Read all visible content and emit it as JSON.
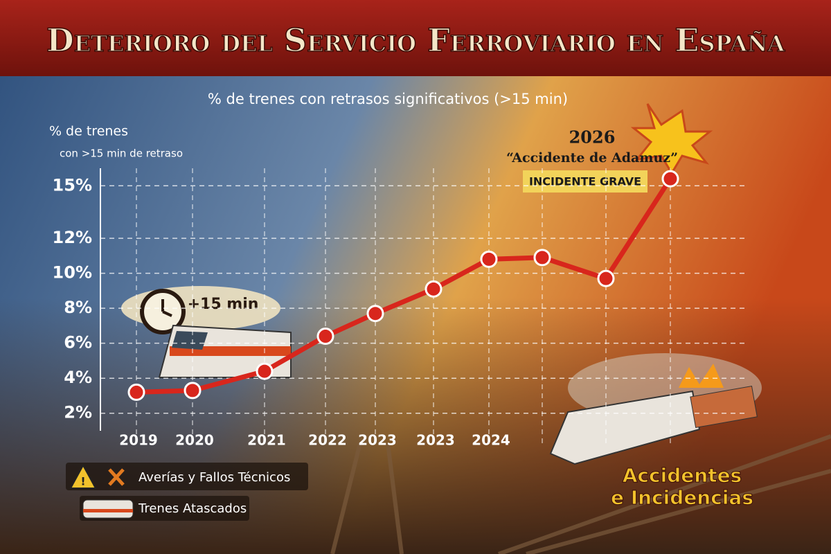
{
  "chart_data": {
    "type": "line",
    "title": "Deterioro del Servicio Ferroviario en España",
    "subtitle": "% de trenes con retrasos significativos (>15 min)",
    "y_label": [
      "% de trenes",
      "con >15 min de retraso"
    ],
    "categories": [
      "2019",
      "2020",
      "2021",
      "2022",
      "2023",
      "2023",
      "2024",
      null,
      null,
      null
    ],
    "series": [
      {
        "color": "#d8261c",
        "values": [
          3.2,
          3.3,
          4.4,
          6.4,
          7.7,
          9.1,
          10.8,
          10.9,
          9.7,
          15.4
        ]
      }
    ],
    "ylim": [
      1,
      16
    ],
    "yticks": [
      {
        "value": 2,
        "label": "2%"
      },
      {
        "value": 4,
        "label": "4%"
      },
      {
        "value": 6,
        "label": "6%"
      },
      {
        "value": 8,
        "label": "8%"
      },
      {
        "value": 10,
        "label": "10%"
      },
      {
        "value": 12,
        "label": "12%"
      },
      {
        "value": 15,
        "label": "15%"
      }
    ],
    "grid": true,
    "annotations": {
      "event_year": "2026",
      "event_name": "“Accidente de Adamuz”",
      "event_badge": "INCIDENTE GRAVE",
      "delay_badge": "+15 min",
      "accidents": [
        "Accidentes",
        "e Incidencias"
      ]
    },
    "legend": [
      "Averías y Fallos Técnicos",
      "Trenes Atascados"
    ]
  }
}
